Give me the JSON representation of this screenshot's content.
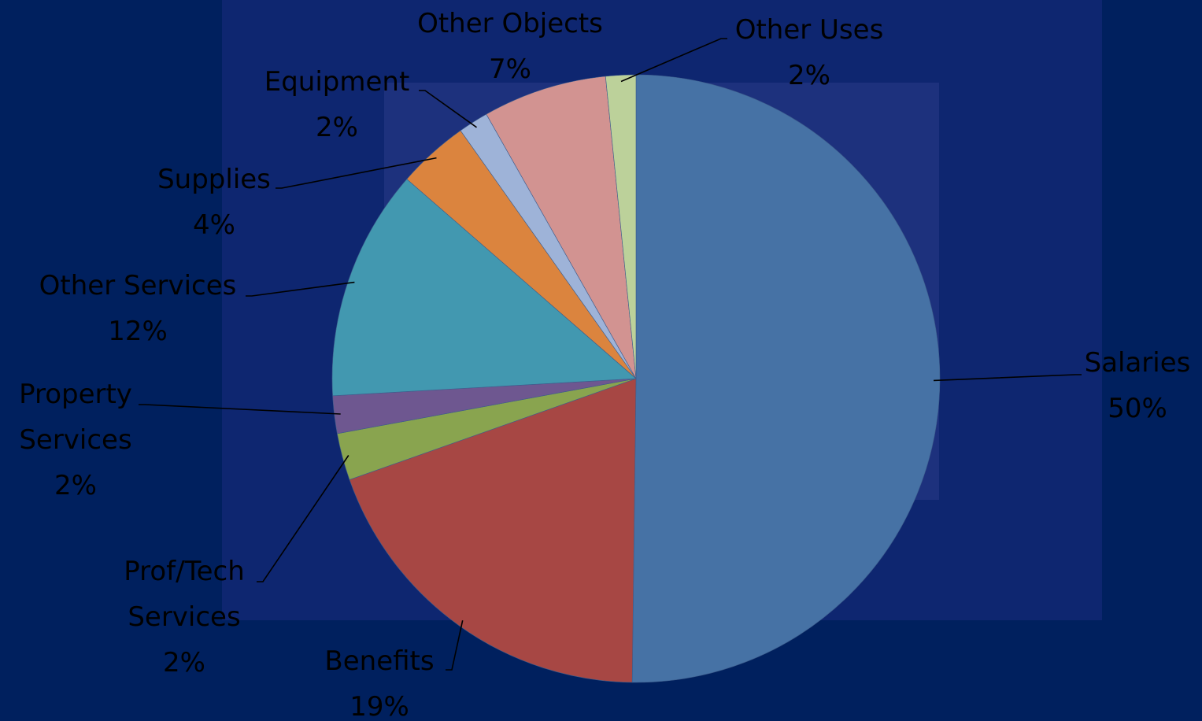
{
  "chart_data": {
    "type": "pie",
    "title": "",
    "start": "12 o'clock, clockwise",
    "slices": [
      {
        "label": [
          "Salaries"
        ],
        "pct": "50%",
        "value": 50.2,
        "color": "#4672a5"
      },
      {
        "label": [
          "Benefits"
        ],
        "pct": "19%",
        "value": 19.4,
        "color": "#a74744"
      },
      {
        "label": [
          "Prof/Tech",
          "Services"
        ],
        "pct": "2%",
        "value": 2.5,
        "color": "#89a44f"
      },
      {
        "label": [
          "Property",
          "Services"
        ],
        "pct": "2%",
        "value": 2.0,
        "color": "#6e5790"
      },
      {
        "label": [
          "Other Services"
        ],
        "pct": "12%",
        "value": 12.3,
        "color": "#4298b0"
      },
      {
        "label": [
          "Supplies"
        ],
        "pct": "4%",
        "value": 3.8,
        "color": "#db843e"
      },
      {
        "label": [
          "Equipment"
        ],
        "pct": "2%",
        "value": 1.6,
        "color": "#9eb3d8"
      },
      {
        "label": [
          "Other Objects"
        ],
        "pct": "7%",
        "value": 6.6,
        "color": "#d29391"
      },
      {
        "label": [
          "Other Uses"
        ],
        "pct": "2%",
        "value": 1.6,
        "color": "#bcd19a"
      }
    ]
  }
}
